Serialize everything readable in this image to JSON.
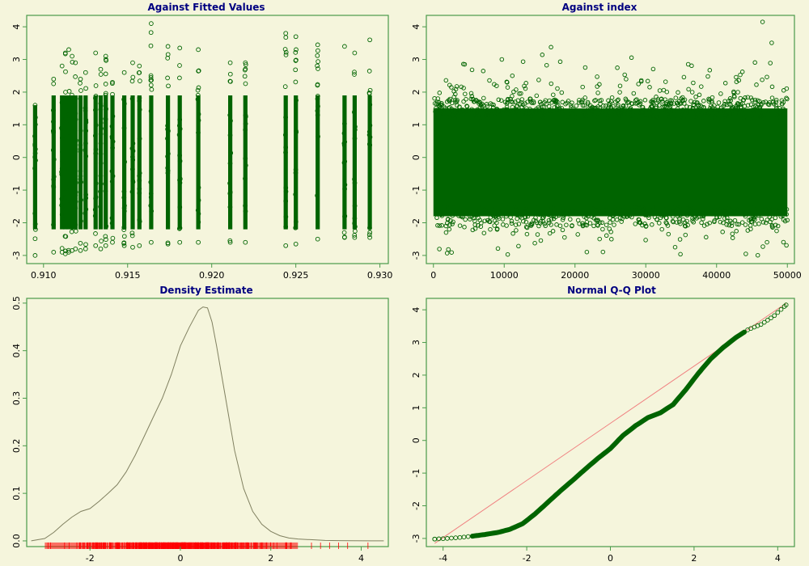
{
  "colors": {
    "background": "#f5f5dc",
    "frame": "#4a9a4a",
    "points": "#006400",
    "title": "#000080",
    "density_line": "#808060",
    "rug": "#ff0000",
    "qq_line": "#f08080"
  },
  "chart_data": [
    {
      "id": "fitted",
      "type": "scatter",
      "title": "Against Fitted Values",
      "xlabel": "",
      "ylabel": "",
      "xlim": [
        0.909,
        0.9305
      ],
      "ylim": [
        -3.25,
        4.35
      ],
      "xticks": [
        0.91,
        0.915,
        0.92,
        0.925,
        0.93
      ],
      "xtick_labels": [
        "0.910",
        "0.915",
        "0.920",
        "0.925",
        "0.930"
      ],
      "yticks": [
        -3,
        -2,
        -1,
        0,
        1,
        2,
        3,
        4
      ],
      "ytick_labels": [
        "-3",
        "-2",
        "-1",
        "0",
        "1",
        "2",
        "3",
        "4"
      ],
      "columns": [
        {
          "x": 0.9095,
          "min": -3.0,
          "max": 1.6
        },
        {
          "x": 0.9106,
          "min": -2.9,
          "max": 2.4
        },
        {
          "x": 0.9111,
          "min": -2.9,
          "max": 2.8
        },
        {
          "x": 0.9113,
          "min": -2.95,
          "max": 3.2
        },
        {
          "x": 0.9115,
          "min": -2.9,
          "max": 3.3
        },
        {
          "x": 0.9117,
          "min": -2.85,
          "max": 3.1
        },
        {
          "x": 0.9119,
          "min": -2.8,
          "max": 2.9
        },
        {
          "x": 0.9122,
          "min": -2.85,
          "max": 2.4
        },
        {
          "x": 0.9125,
          "min": -2.8,
          "max": 2.6
        },
        {
          "x": 0.9131,
          "min": -2.7,
          "max": 3.2
        },
        {
          "x": 0.9134,
          "min": -2.8,
          "max": 2.7
        },
        {
          "x": 0.9137,
          "min": -2.7,
          "max": 3.1
        },
        {
          "x": 0.9141,
          "min": -2.6,
          "max": 2.3
        },
        {
          "x": 0.9148,
          "min": -2.7,
          "max": 2.6
        },
        {
          "x": 0.9153,
          "min": -2.75,
          "max": 2.9
        },
        {
          "x": 0.9157,
          "min": -2.7,
          "max": 2.8
        },
        {
          "x": 0.9164,
          "min": -2.6,
          "max": 4.1
        },
        {
          "x": 0.9174,
          "min": -2.65,
          "max": 3.4
        },
        {
          "x": 0.9181,
          "min": -2.6,
          "max": 3.35
        },
        {
          "x": 0.9192,
          "min": -2.6,
          "max": 3.3
        },
        {
          "x": 0.9211,
          "min": -2.6,
          "max": 2.9
        },
        {
          "x": 0.922,
          "min": -2.6,
          "max": 2.9
        },
        {
          "x": 0.9244,
          "min": -2.7,
          "max": 3.8
        },
        {
          "x": 0.925,
          "min": -2.65,
          "max": 3.7
        },
        {
          "x": 0.9263,
          "min": -2.5,
          "max": 3.45
        },
        {
          "x": 0.9279,
          "min": -2.45,
          "max": 3.4
        },
        {
          "x": 0.9285,
          "min": -2.45,
          "max": 3.2
        },
        {
          "x": 0.9294,
          "min": -2.45,
          "max": 3.6
        }
      ]
    },
    {
      "id": "index",
      "type": "scatter",
      "title": "Against index",
      "xlabel": "",
      "ylabel": "",
      "xlim": [
        -1000,
        51000
      ],
      "ylim": [
        -3.25,
        4.35
      ],
      "xticks": [
        0,
        10000,
        20000,
        30000,
        40000,
        50000
      ],
      "xtick_labels": [
        "0",
        "10000",
        "20000",
        "30000",
        "40000",
        "50000"
      ],
      "yticks": [
        -3,
        -2,
        -1,
        0,
        1,
        2,
        3,
        4
      ],
      "ytick_labels": [
        "-3",
        "-2",
        "-1",
        "0",
        "1",
        "2",
        "3",
        "4"
      ],
      "n": 50000,
      "y_range": [
        -3.0,
        4.15
      ]
    },
    {
      "id": "density",
      "type": "line",
      "title": "Density Estimate",
      "xlabel": "",
      "ylabel": "",
      "xlim": [
        -3.4,
        4.6
      ],
      "ylim": [
        -0.012,
        0.51
      ],
      "xticks": [
        -2,
        0,
        2,
        4
      ],
      "xtick_labels": [
        "-2",
        "0",
        "2",
        "4"
      ],
      "yticks": [
        0.0,
        0.1,
        0.2,
        0.3,
        0.4,
        0.5
      ],
      "ytick_labels": [
        "0.0",
        "0.1",
        "0.2",
        "0.3",
        "0.4",
        "0.5"
      ],
      "x": [
        -3.3,
        -3.0,
        -2.8,
        -2.6,
        -2.4,
        -2.2,
        -2.0,
        -1.8,
        -1.6,
        -1.4,
        -1.2,
        -1.0,
        -0.8,
        -0.6,
        -0.4,
        -0.2,
        0.0,
        0.2,
        0.4,
        0.5,
        0.6,
        0.7,
        0.8,
        1.0,
        1.2,
        1.4,
        1.6,
        1.8,
        2.0,
        2.2,
        2.4,
        2.6,
        2.8,
        3.0,
        3.2,
        3.5,
        3.8,
        4.2,
        4.5
      ],
      "y": [
        0.0,
        0.005,
        0.018,
        0.035,
        0.05,
        0.062,
        0.068,
        0.083,
        0.1,
        0.118,
        0.145,
        0.18,
        0.22,
        0.26,
        0.3,
        0.35,
        0.41,
        0.45,
        0.485,
        0.492,
        0.49,
        0.46,
        0.41,
        0.3,
        0.19,
        0.11,
        0.062,
        0.035,
        0.02,
        0.011,
        0.006,
        0.004,
        0.003,
        0.002,
        0.001,
        0.0005,
        0.0003,
        0.0001,
        0.0
      ],
      "rug_range": [
        -3.0,
        4.15
      ]
    },
    {
      "id": "qq",
      "type": "scatter",
      "title": "Normal Q-Q Plot",
      "xlabel": "",
      "ylabel": "",
      "xlim": [
        -4.4,
        4.4
      ],
      "ylim": [
        -3.25,
        4.35
      ],
      "xticks": [
        -4,
        -2,
        0,
        2,
        4
      ],
      "xtick_labels": [
        "-4",
        "-2",
        "0",
        "2",
        "4"
      ],
      "yticks": [
        -3,
        -2,
        -1,
        0,
        1,
        2,
        3,
        4
      ],
      "ytick_labels": [
        "-3",
        "-2",
        "-1",
        "0",
        "1",
        "2",
        "3",
        "4"
      ],
      "theoretical": [
        -4.2,
        -3.9,
        -3.6,
        -3.3,
        -3.0,
        -2.7,
        -2.4,
        -2.1,
        -1.8,
        -1.5,
        -1.2,
        -0.9,
        -0.6,
        -0.3,
        0.0,
        0.3,
        0.6,
        0.9,
        1.2,
        1.5,
        1.8,
        2.1,
        2.4,
        2.7,
        3.0,
        3.3,
        3.6,
        3.9,
        4.2
      ],
      "sample": [
        -3.02,
        -3.0,
        -2.97,
        -2.93,
        -2.88,
        -2.82,
        -2.72,
        -2.55,
        -2.25,
        -1.9,
        -1.55,
        -1.22,
        -0.88,
        -0.55,
        -0.25,
        0.15,
        0.45,
        0.7,
        0.85,
        1.1,
        1.55,
        2.05,
        2.5,
        2.85,
        3.15,
        3.4,
        3.55,
        3.8,
        4.15
      ],
      "line_points": [
        [
          -4.2,
          -3.15
        ],
        [
          4.2,
          4.2
        ]
      ]
    }
  ]
}
